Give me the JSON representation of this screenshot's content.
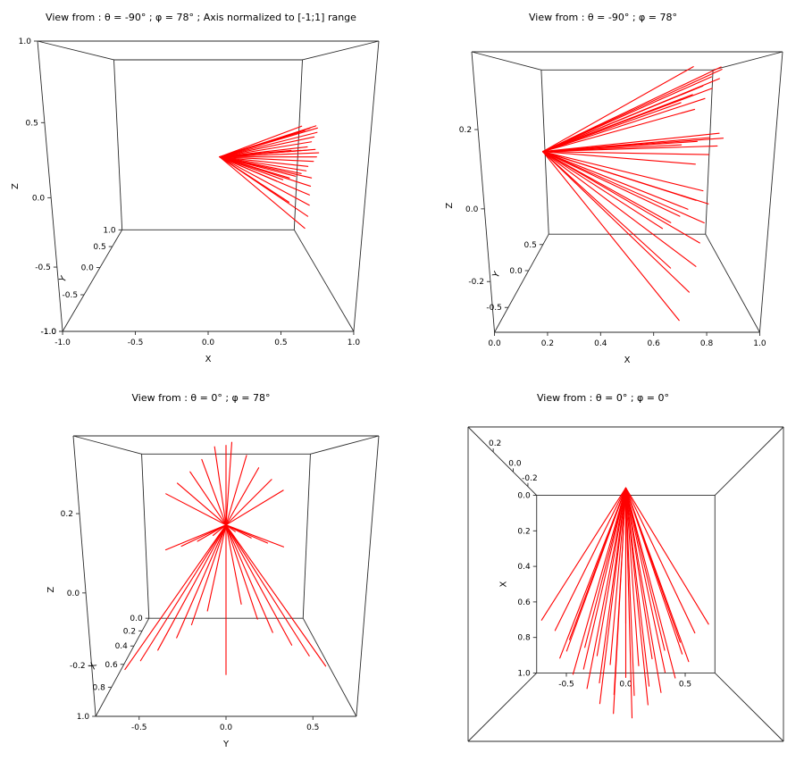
{
  "figure": {
    "background": "#ffffff"
  },
  "chart_data": {
    "type": "line",
    "subtype": "3d-ray-fan",
    "description": "Four 3D perspective wireframe boxes showing the same bundle of red rays emanating from a common origin, viewed from different (theta, phi) angles.",
    "line_color": "#ff0000",
    "box_color": "#2a2a2a",
    "rays": {
      "origin": [
        0.1,
        0.0,
        0.09
      ],
      "ends": [
        [
          0.93,
          0.03,
          0.37
        ],
        [
          0.92,
          -0.06,
          0.36
        ],
        [
          0.9,
          0.11,
          0.34
        ],
        [
          0.9,
          -0.13,
          0.33
        ],
        [
          0.87,
          0.18,
          0.31
        ],
        [
          0.86,
          -0.2,
          0.3
        ],
        [
          0.83,
          0.26,
          0.28
        ],
        [
          0.82,
          -0.28,
          0.27
        ],
        [
          0.78,
          0.34,
          0.25
        ],
        [
          0.77,
          -0.36,
          0.24
        ],
        [
          0.94,
          0.05,
          0.15
        ],
        [
          0.94,
          -0.07,
          0.14
        ],
        [
          0.91,
          0.14,
          0.13
        ],
        [
          0.9,
          -0.16,
          0.12
        ],
        [
          0.86,
          0.24,
          0.11
        ],
        [
          0.85,
          -0.26,
          0.1
        ],
        [
          0.79,
          0.35,
          0.09
        ],
        [
          0.78,
          -0.37,
          0.08
        ],
        [
          0.88,
          0.09,
          -0.06
        ],
        [
          0.88,
          -0.11,
          -0.08
        ],
        [
          0.86,
          0.19,
          -0.11
        ],
        [
          0.85,
          -0.21,
          -0.13
        ],
        [
          0.83,
          0.29,
          -0.16
        ],
        [
          0.82,
          -0.31,
          -0.18
        ],
        [
          0.8,
          0.42,
          -0.21
        ],
        [
          0.79,
          -0.44,
          -0.23
        ],
        [
          0.76,
          0.55,
          -0.26
        ],
        [
          0.75,
          -0.57,
          -0.28
        ],
        [
          0.72,
          0.68,
          -0.31
        ],
        [
          0.7,
          -0.7,
          -0.33
        ],
        [
          0.8,
          0.0,
          0.37
        ],
        [
          0.72,
          0.0,
          -0.34
        ]
      ]
    },
    "panels": [
      {
        "title": "View from : θ = -90° ; φ = 78° ; Axis normalized to [-1;1] range",
        "theta": -90,
        "phi": 78,
        "ranges": {
          "x": [
            -1,
            1
          ],
          "y": [
            -1,
            1
          ],
          "z": [
            -1,
            1
          ]
        },
        "axes": [
          {
            "axis": "x",
            "label": "X",
            "kind": "bottom",
            "fixed": {
              "y": "min",
              "z": "min"
            },
            "dir": [
              0,
              1
            ],
            "ticks": [
              -1,
              -0.5,
              0,
              0.5,
              1
            ],
            "tick_labels": [
              "-1.0",
              "-0.5",
              "0.0",
              "0.5",
              "1.0"
            ],
            "title_rot": "none",
            "title_gap": 34
          },
          {
            "axis": "y",
            "label": "Y",
            "kind": "diag",
            "fixed": {
              "x": "min",
              "z": "min"
            },
            "dir": [
              -1,
              0
            ],
            "ticks": [
              -1,
              -0.5,
              0,
              0.5,
              1
            ],
            "tick_labels": [
              "-1.0",
              "-0.5",
              "0.0",
              "0.5",
              "1.0"
            ],
            "title_rot": "auto",
            "title_gap": 30
          },
          {
            "axis": "z",
            "label": "Z",
            "kind": "left",
            "fixed": {
              "x": "min",
              "y": "min"
            },
            "dir": [
              -1,
              0
            ],
            "ticks": [
              -1,
              -0.5,
              0,
              0.5,
              1
            ],
            "tick_labels": [
              "-1.0",
              "-0.5",
              "0.0",
              "0.5",
              "1.0"
            ],
            "title_rot": -90,
            "title_gap": 36
          }
        ]
      },
      {
        "title": "View from : θ = -90° ; φ = 78°",
        "theta": -90,
        "phi": 78,
        "ranges": {
          "x": [
            0,
            1
          ],
          "y": [
            -0.75,
            0.75
          ],
          "z": [
            -0.35,
            0.38
          ]
        },
        "axes": [
          {
            "axis": "x",
            "label": "X",
            "kind": "bottom",
            "fixed": {
              "y": "min",
              "z": "min"
            },
            "dir": [
              0,
              1
            ],
            "ticks": [
              0,
              0.2,
              0.4,
              0.6,
              0.8,
              1
            ],
            "tick_labels": [
              "0.0",
              "0.2",
              "0.4",
              "0.6",
              "0.8",
              "1.0"
            ],
            "title_rot": "none",
            "title_gap": 34
          },
          {
            "axis": "y",
            "label": "Y",
            "kind": "diag",
            "fixed": {
              "x": "min",
              "z": "min"
            },
            "dir": [
              -1,
              0
            ],
            "ticks": [
              -0.5,
              0,
              0.5
            ],
            "tick_labels": [
              "-0.5",
              "0.0",
              "0.5"
            ],
            "title_rot": "auto",
            "title_gap": 30
          },
          {
            "axis": "z",
            "label": "Z",
            "kind": "left",
            "fixed": {
              "x": "min",
              "y": "min"
            },
            "dir": [
              -1,
              0
            ],
            "ticks": [
              -0.2,
              0,
              0.2
            ],
            "tick_labels": [
              "-0.2",
              "0.0",
              "0.2"
            ],
            "title_rot": -90,
            "title_gap": 36
          }
        ]
      },
      {
        "title": "View from : θ = 0° ; φ = 78°",
        "theta": 0,
        "phi": 78,
        "ranges": {
          "x": [
            0,
            1
          ],
          "y": [
            -0.75,
            0.75
          ],
          "z": [
            -0.35,
            0.38
          ]
        },
        "axes": [
          {
            "axis": "y",
            "label": "Y",
            "kind": "bottom",
            "fixed": {
              "x": "max",
              "z": "min"
            },
            "dir": [
              0,
              1
            ],
            "ticks": [
              -0.5,
              0,
              0.5
            ],
            "tick_labels": [
              "-0.5",
              "0.0",
              "0.5"
            ],
            "title_rot": "none",
            "title_gap": 34
          },
          {
            "axis": "x",
            "label": "X",
            "kind": "diag",
            "fixed": {
              "y": "min",
              "z": "min"
            },
            "dir": [
              -1,
              0
            ],
            "ticks": [
              0,
              0.2,
              0.4,
              0.6,
              0.8,
              1
            ],
            "tick_labels": [
              "0.0",
              "0.2",
              "0.4",
              "0.6",
              "0.8",
              "1.0"
            ],
            "title_rot": "auto",
            "title_gap": 30
          },
          {
            "axis": "z",
            "label": "Z",
            "kind": "left",
            "fixed": {
              "x": "max",
              "y": "min"
            },
            "dir": [
              -1,
              0
            ],
            "ticks": [
              -0.2,
              0,
              0.2
            ],
            "tick_labels": [
              "-0.2",
              "0.0",
              "0.2"
            ],
            "title_rot": -90,
            "title_gap": 36
          }
        ]
      },
      {
        "title": "View from : θ = 0° ; φ = 0°",
        "theta": 0,
        "phi": 0,
        "ranges": {
          "x": [
            0,
            1
          ],
          "y": [
            -0.75,
            0.75
          ],
          "z": [
            -0.35,
            0.38
          ]
        },
        "axes": [
          {
            "axis": "y",
            "label": "",
            "kind": "bottom",
            "fixed": {
              "x": "max",
              "z": "min"
            },
            "dir": [
              0,
              1
            ],
            "ticks": [
              -0.5,
              0,
              0.5
            ],
            "tick_labels": [
              "-0.5",
              "0.0",
              "0.5"
            ],
            "title_rot": "none",
            "title_gap": 0
          },
          {
            "axis": "x",
            "label": "X",
            "kind": "left",
            "fixed": {
              "y": "min",
              "z": "min"
            },
            "dir": [
              -1,
              0
            ],
            "ticks": [
              0,
              0.2,
              0.4,
              0.6,
              0.8,
              1
            ],
            "tick_labels": [
              "0.0",
              "0.2",
              "0.4",
              "0.6",
              "0.8",
              "1.0"
            ],
            "title_rot": -90,
            "title_gap": 34
          },
          {
            "axis": "z",
            "label": "",
            "kind": "diag",
            "fixed": {
              "x": "min",
              "y": "min"
            },
            "dir": [
              0,
              -1
            ],
            "ticks": [
              -0.2,
              0,
              0.2
            ],
            "tick_labels": [
              "-0.2",
              "0.0",
              "0.2"
            ],
            "title_rot": "none",
            "title_gap": 0
          }
        ]
      }
    ]
  }
}
